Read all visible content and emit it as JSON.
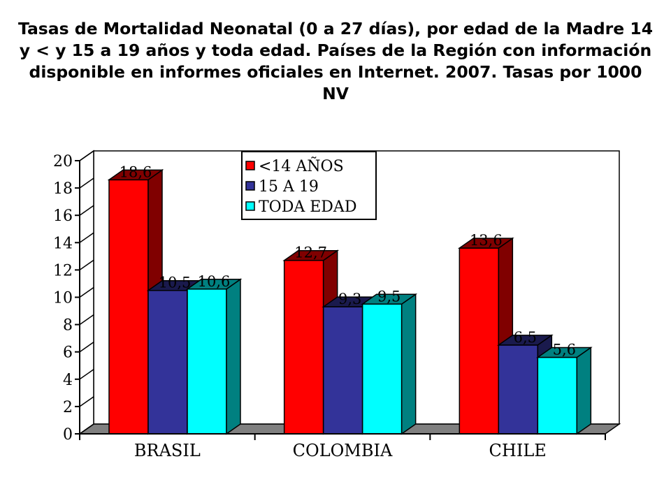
{
  "title": "Tasas de Mortalidad Neonatal (0 a 27 días), por edad de la Madre 14 y < y 15 a 19 años y  toda edad. Países de la Región con información disponible en informes oficiales en Internet. 2007. Tasas por 1000 NV",
  "chart_data": {
    "type": "bar",
    "categories": [
      "BRASIL",
      "COLOMBIA",
      "CHILE"
    ],
    "series": [
      {
        "name": "<14 AÑOS",
        "values": [
          18.6,
          12.7,
          13.6
        ],
        "labels": [
          "18,6",
          "12,7",
          "13,6"
        ],
        "color": "#ff0000",
        "side_color": "#800000"
      },
      {
        "name": "15 A 19",
        "values": [
          10.5,
          9.3,
          6.5
        ],
        "labels": [
          "10,5",
          "9,3",
          "6,5"
        ],
        "color": "#333399",
        "side_color": "#1a1a4d"
      },
      {
        "name": "TODA EDAD",
        "values": [
          10.6,
          9.5,
          5.6
        ],
        "labels": [
          "10,6",
          "9,5",
          "5,6"
        ],
        "color": "#00ffff",
        "side_color": "#008080"
      }
    ],
    "yticks": [
      "0",
      "2",
      "4",
      "6",
      "8",
      "10",
      "12",
      "14",
      "16",
      "18",
      "20"
    ],
    "ylim": [
      0,
      20
    ],
    "grid": false,
    "legend_position": "top-center",
    "style": "3d"
  }
}
